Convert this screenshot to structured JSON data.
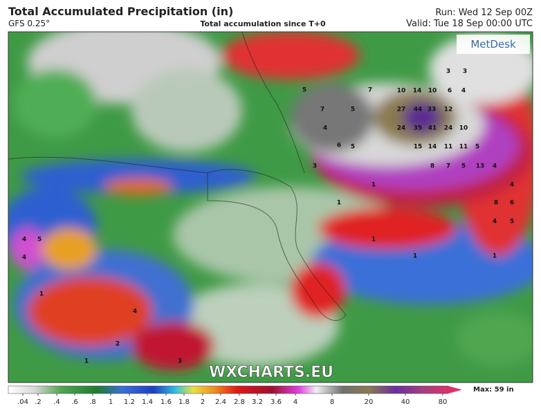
{
  "header": {
    "title": "Total Accumulated Precipitation (in)",
    "model": "GFS 0.25°",
    "subtitle": "Total accumulation since T+0",
    "run": "Run: Wed 12 Sep 00Z",
    "valid": "Valid: Tue 18 Sep 00:00 UTC"
  },
  "logo": "MetDesk",
  "watermark": "WXCHARTS.EU",
  "colorbar": {
    "max": "Max: 59 in",
    "ticks": [
      {
        "value": 0.04,
        "label": ".04"
      },
      {
        "value": 0.2,
        "label": ".2"
      },
      {
        "value": 0.4,
        "label": ".4"
      },
      {
        "value": 0.6,
        "label": ".6"
      },
      {
        "value": 0.8,
        "label": ".8"
      },
      1,
      1.2,
      1.4,
      1.6,
      1.8,
      2,
      2.4,
      2.8,
      3.2,
      3.6,
      4,
      8,
      20,
      40,
      80
    ]
  },
  "map_labels": [
    "5",
    "7",
    "5",
    "4",
    "6",
    "5",
    "3",
    "7",
    "10",
    "14",
    "10",
    "6",
    "4",
    "27",
    "44",
    "33",
    "12",
    "24",
    "35",
    "41",
    "24",
    "10",
    "15",
    "14",
    "11",
    "11",
    "5",
    "8",
    "7",
    "5",
    "13",
    "4",
    "4",
    "8",
    "6",
    "4",
    "5",
    "3",
    "3",
    "1",
    "4",
    "5",
    "4",
    "1",
    "1",
    "1",
    "4",
    "2",
    "3",
    "1",
    "1",
    "1"
  ]
}
